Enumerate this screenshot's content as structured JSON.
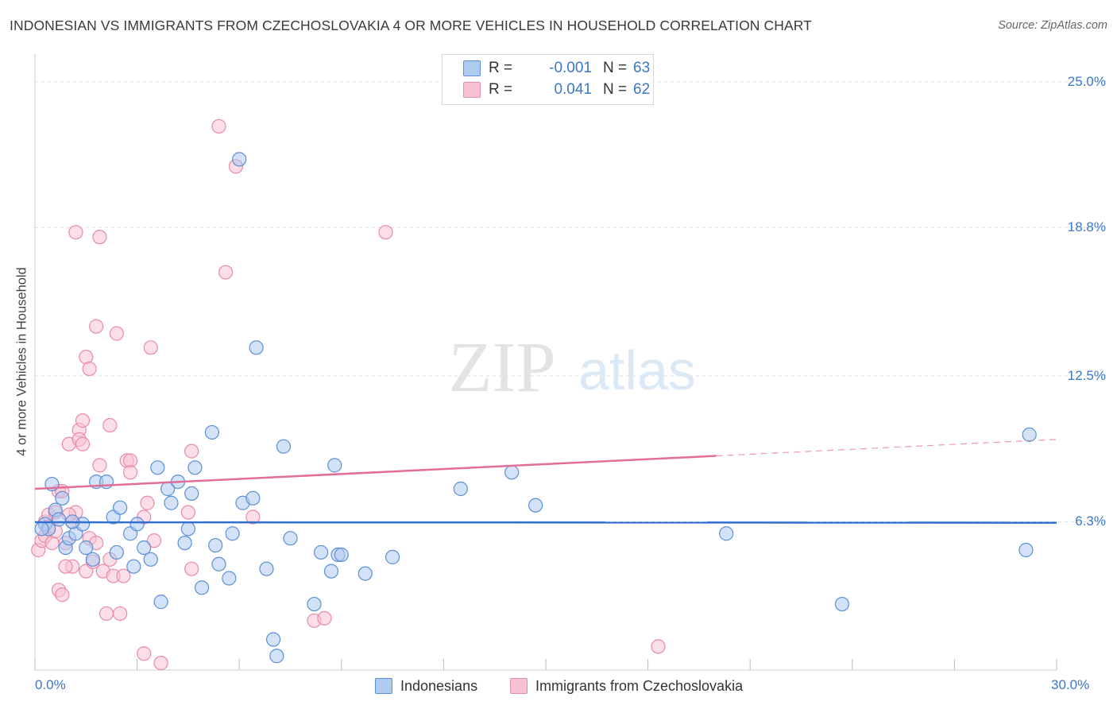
{
  "title": "INDONESIAN VS IMMIGRANTS FROM CZECHOSLOVAKIA 4 OR MORE VEHICLES IN HOUSEHOLD CORRELATION CHART",
  "source": "Source: ZipAtlas.com",
  "watermark": {
    "zip": "ZIP",
    "atlas": "atlas"
  },
  "legend": {
    "r_label": "R =",
    "n_label": "N =",
    "rows": [
      {
        "name": "Indonesians",
        "r": "-0.001",
        "n": "63"
      },
      {
        "name": "Immigrants from Czechoslovakia",
        "r": "0.041",
        "n": "62"
      }
    ]
  },
  "colors": {
    "blue_fill": "#aecbf0",
    "blue_stroke": "#5b90d6",
    "blue_line": "#2f6fcf",
    "pink_fill": "#f8c2d3",
    "pink_stroke": "#e88aa8",
    "pink_line": "#e36d99",
    "tick_text": "#3b77c9",
    "grid": "#dddddd"
  },
  "chart_data": {
    "type": "scatter",
    "title": "INDONESIAN VS IMMIGRANTS FROM CZECHOSLOVAKIA 4 OR MORE VEHICLES IN HOUSEHOLD CORRELATION CHART",
    "xlabel": "",
    "ylabel": "4 or more Vehicles in Household",
    "xlim": [
      0,
      30
    ],
    "ylim": [
      0,
      25.8
    ],
    "x_tick_labels": [
      "0.0%",
      "30.0%"
    ],
    "y_ticks": [
      6.3,
      12.5,
      18.8,
      25.0
    ],
    "y_tick_labels": [
      "6.3%",
      "12.5%",
      "18.8%",
      "25.0%"
    ],
    "grid": true,
    "series": [
      {
        "name": "Indonesians",
        "trend": {
          "x": [
            0,
            30
          ],
          "y": [
            6.28,
            6.26
          ],
          "dashed_from": null
        },
        "points": [
          [
            0.3,
            6.2
          ],
          [
            0.4,
            6.0
          ],
          [
            0.5,
            7.9
          ],
          [
            0.6,
            6.8
          ],
          [
            0.8,
            7.3
          ],
          [
            0.9,
            5.2
          ],
          [
            1.0,
            5.6
          ],
          [
            1.2,
            5.8
          ],
          [
            1.4,
            6.2
          ],
          [
            1.5,
            5.2
          ],
          [
            1.7,
            4.7
          ],
          [
            1.8,
            8.0
          ],
          [
            2.1,
            8.0
          ],
          [
            2.3,
            6.5
          ],
          [
            2.4,
            5.0
          ],
          [
            2.5,
            6.9
          ],
          [
            2.8,
            5.8
          ],
          [
            2.9,
            4.4
          ],
          [
            3.0,
            6.2
          ],
          [
            3.2,
            5.2
          ],
          [
            3.4,
            4.7
          ],
          [
            3.6,
            8.6
          ],
          [
            3.7,
            2.9
          ],
          [
            3.9,
            7.7
          ],
          [
            4.0,
            7.1
          ],
          [
            4.2,
            8.0
          ],
          [
            4.4,
            5.4
          ],
          [
            4.5,
            6.0
          ],
          [
            4.6,
            7.5
          ],
          [
            4.7,
            8.6
          ],
          [
            4.9,
            3.5
          ],
          [
            5.2,
            10.1
          ],
          [
            5.3,
            5.3
          ],
          [
            5.4,
            4.5
          ],
          [
            5.7,
            3.9
          ],
          [
            5.8,
            5.8
          ],
          [
            6.1,
            7.1
          ],
          [
            6.4,
            7.3
          ],
          [
            6.8,
            4.3
          ],
          [
            7.0,
            1.3
          ],
          [
            7.1,
            0.6
          ],
          [
            7.3,
            9.5
          ],
          [
            7.5,
            5.6
          ],
          [
            8.2,
            2.8
          ],
          [
            8.4,
            5.0
          ],
          [
            8.7,
            4.2
          ],
          [
            8.8,
            8.7
          ],
          [
            8.9,
            4.9
          ],
          [
            9.0,
            4.9
          ],
          [
            9.7,
            4.1
          ],
          [
            10.5,
            4.8
          ],
          [
            12.5,
            7.7
          ],
          [
            14.0,
            8.4
          ],
          [
            14.7,
            7.0
          ],
          [
            20.3,
            5.8
          ],
          [
            23.7,
            2.8
          ],
          [
            29.1,
            5.1
          ],
          [
            29.2,
            10.0
          ],
          [
            0.2,
            6.0
          ],
          [
            0.7,
            6.4
          ],
          [
            1.1,
            6.3
          ],
          [
            6.0,
            21.7
          ],
          [
            6.5,
            13.7
          ]
        ]
      },
      {
        "name": "Immigrants from Czechoslovakia",
        "trend": {
          "x": [
            0,
            30
          ],
          "y": [
            7.7,
            9.8
          ],
          "dashed_from": 20.0
        },
        "points": [
          [
            0.1,
            5.1
          ],
          [
            0.2,
            5.5
          ],
          [
            0.3,
            5.7
          ],
          [
            0.3,
            6.3
          ],
          [
            0.4,
            6.6
          ],
          [
            0.5,
            5.4
          ],
          [
            0.6,
            6.7
          ],
          [
            0.7,
            3.4
          ],
          [
            0.7,
            7.6
          ],
          [
            0.8,
            3.2
          ],
          [
            0.8,
            7.6
          ],
          [
            0.9,
            5.4
          ],
          [
            1.0,
            9.6
          ],
          [
            1.1,
            6.3
          ],
          [
            1.1,
            4.4
          ],
          [
            1.2,
            6.7
          ],
          [
            1.2,
            18.6
          ],
          [
            1.3,
            10.2
          ],
          [
            1.3,
            9.8
          ],
          [
            1.4,
            10.6
          ],
          [
            1.4,
            9.6
          ],
          [
            1.5,
            4.2
          ],
          [
            1.6,
            5.6
          ],
          [
            1.5,
            13.3
          ],
          [
            1.6,
            12.8
          ],
          [
            1.7,
            4.6
          ],
          [
            1.8,
            5.4
          ],
          [
            1.8,
            14.6
          ],
          [
            1.9,
            8.7
          ],
          [
            1.9,
            18.4
          ],
          [
            2.0,
            4.2
          ],
          [
            2.1,
            2.4
          ],
          [
            2.2,
            4.7
          ],
          [
            2.2,
            10.4
          ],
          [
            2.3,
            4.0
          ],
          [
            2.4,
            14.3
          ],
          [
            2.5,
            2.4
          ],
          [
            2.6,
            4.0
          ],
          [
            2.7,
            8.9
          ],
          [
            2.8,
            8.9
          ],
          [
            2.8,
            8.4
          ],
          [
            3.2,
            0.7
          ],
          [
            3.2,
            6.5
          ],
          [
            3.3,
            7.1
          ],
          [
            3.4,
            13.7
          ],
          [
            3.5,
            5.5
          ],
          [
            3.7,
            0.3
          ],
          [
            4.5,
            6.7
          ],
          [
            4.6,
            4.3
          ],
          [
            4.6,
            9.3
          ],
          [
            5.4,
            23.1
          ],
          [
            5.6,
            16.9
          ],
          [
            5.9,
            21.4
          ],
          [
            6.4,
            6.5
          ],
          [
            8.2,
            2.1
          ],
          [
            8.5,
            2.2
          ],
          [
            10.3,
            18.6
          ],
          [
            18.3,
            1.0
          ],
          [
            0.4,
            6.1
          ],
          [
            0.6,
            5.9
          ],
          [
            1.0,
            6.6
          ],
          [
            0.9,
            4.4
          ]
        ]
      }
    ]
  }
}
